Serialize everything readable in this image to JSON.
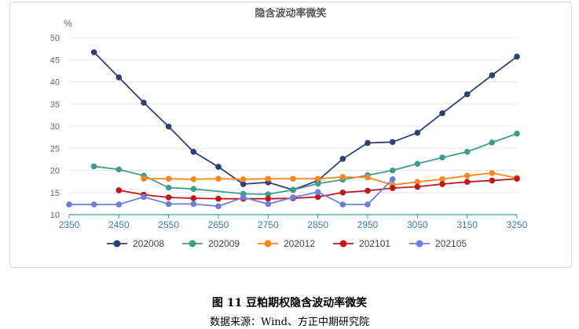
{
  "chart_data": {
    "type": "line",
    "title": "隐含波动率微笑",
    "ylabel": "%",
    "xlabel": "",
    "x_ticks": [
      2350,
      2450,
      2550,
      2650,
      2750,
      2850,
      2950,
      3050,
      3150,
      3250
    ],
    "xlim": [
      2350,
      3250
    ],
    "ylim": [
      10,
      50
    ],
    "y_ticks": [
      10,
      15,
      20,
      25,
      30,
      35,
      40,
      45,
      50
    ],
    "grid": "horizontal",
    "legend_position": "bottom",
    "series": [
      {
        "name": "202008",
        "color": "#303f73",
        "x": [
          2400,
          2450,
          2500,
          2550,
          2600,
          2650,
          2700,
          2750,
          2800,
          2850,
          2900,
          2950,
          3000,
          3050,
          3100,
          3150,
          3200,
          3250
        ],
        "y": [
          46.7,
          41.0,
          35.3,
          29.9,
          24.2,
          20.8,
          16.9,
          17.3,
          15.6,
          17.7,
          22.6,
          26.2,
          26.4,
          28.5,
          32.9,
          37.2,
          41.5,
          45.7
        ]
      },
      {
        "name": "202009",
        "color": "#3f9c8b",
        "x": [
          2400,
          2450,
          2500,
          2550,
          2600,
          2700,
          2750,
          2800,
          2850,
          2900,
          2950,
          3000,
          3050,
          3100,
          3150,
          3200,
          3250
        ],
        "y": [
          20.9,
          20.2,
          18.8,
          16.1,
          15.8,
          14.7,
          14.6,
          15.6,
          17.0,
          17.9,
          18.9,
          20.0,
          21.5,
          22.9,
          24.2,
          26.3,
          28.3
        ]
      },
      {
        "name": "202012",
        "color": "#f5891e",
        "x": [
          2500,
          2550,
          2600,
          2650,
          2700,
          2750,
          2800,
          2850,
          2900,
          2950,
          3000,
          3050,
          3100,
          3150,
          3200,
          3250
        ],
        "y": [
          18.1,
          18.1,
          18.0,
          18.1,
          18.0,
          18.1,
          18.1,
          18.1,
          18.5,
          18.4,
          16.7,
          17.4,
          18.0,
          18.8,
          19.4,
          18.3
        ]
      },
      {
        "name": "202101",
        "color": "#c0161c",
        "x": [
          2450,
          2500,
          2550,
          2600,
          2650,
          2700,
          2750,
          2800,
          2850,
          2900,
          2950,
          3000,
          3050,
          3100,
          3150,
          3200,
          3250
        ],
        "y": [
          15.5,
          14.5,
          13.9,
          13.7,
          13.6,
          13.6,
          13.6,
          13.7,
          14.0,
          15.0,
          15.4,
          16.0,
          16.3,
          16.9,
          17.4,
          17.7,
          18.1
        ]
      },
      {
        "name": "202105",
        "color": "#6f7ddb",
        "x": [
          2350,
          2400,
          2450,
          2500,
          2550,
          2600,
          2650,
          2700,
          2750,
          2800,
          2850,
          2900,
          2950,
          3000
        ],
        "y": [
          12.3,
          12.3,
          12.3,
          14.0,
          12.4,
          12.4,
          11.9,
          13.9,
          12.4,
          13.9,
          15.1,
          12.3,
          12.3,
          18.0
        ]
      }
    ]
  },
  "caption": "图 11  豆粕期权隐含波动率微笑",
  "source": "数据来源：Wind、方正中期研究院"
}
